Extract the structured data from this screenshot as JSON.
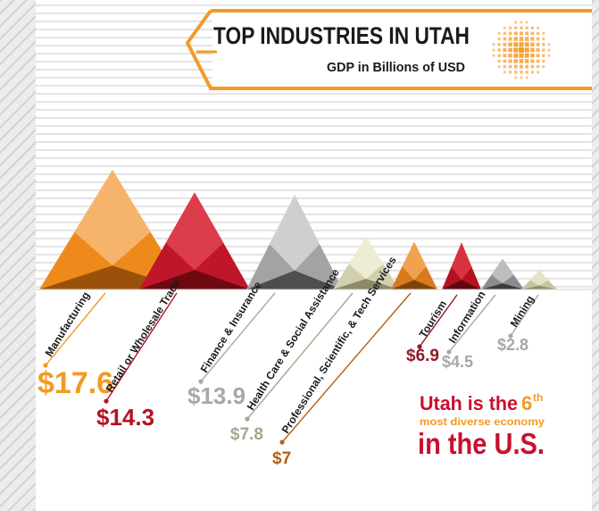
{
  "chart_data": {
    "type": "bar",
    "title": "TOP INDUSTRIES IN UTAH",
    "subtitle": "GDP in Billions of USD",
    "categories": [
      "Manufacturing",
      "Retail or Wholesale Trade",
      "Finance & Insurance",
      "Health Care & Social Assistance",
      "Professional, Scientific, & Tech Services",
      "Tourism",
      "Information",
      "Mining"
    ],
    "value_labels": [
      "$17.6",
      "$14.3",
      "$13.9",
      "$7.8",
      "$7",
      "$6.9",
      "$4.5",
      "$2.8"
    ],
    "values": [
      17.6,
      14.3,
      13.9,
      7.8,
      7.0,
      6.9,
      4.5,
      2.8
    ],
    "colors": {
      "light": [
        "#f6b46a",
        "#dc3c4c",
        "#cfcfd1",
        "#eeecd2",
        "#f0a24e",
        "#d8323f",
        "#bdbdbf",
        "#e6e2c6"
      ],
      "mid": [
        "#ee8a1c",
        "#c0162b",
        "#a3a3a6",
        "#d2cfae",
        "#d97a1e",
        "#b3111f",
        "#8c8c8f",
        "#c8c4a4"
      ],
      "dark": [
        "#9a520a",
        "#6e0912",
        "#4e4e51",
        "#8d8a6b",
        "#7d4409",
        "#600710",
        "#3d3d40",
        "#918d70"
      ],
      "label": [
        "#f39a26",
        "#b31423",
        "#a8a8a8",
        "#a8a68e",
        "#b2620f",
        "#8e1b26",
        "#a8a8a8",
        "#a8a8a8"
      ]
    },
    "grid": true,
    "legend": "none"
  },
  "callout": {
    "line1": "Utah is the",
    "rank": "6",
    "rank_suffix": "th",
    "line2": "most diverse economy",
    "line3": "in the U.S."
  },
  "theme": {
    "accent": "#f39a26",
    "red": "#c8102e",
    "dark": "#1a1a1a"
  }
}
